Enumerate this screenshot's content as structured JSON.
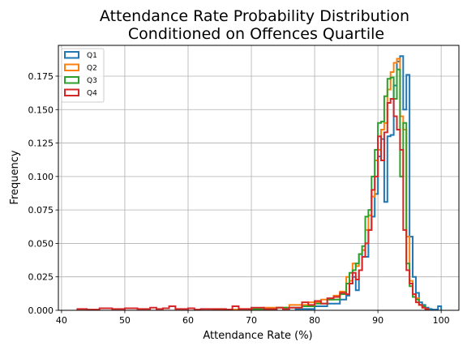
{
  "chart_data": {
    "type": "histogram",
    "title_lines": [
      "Attendance Rate Probability Distribution",
      "Conditioned on Offences Quartile"
    ],
    "xlabel": "Attendance Rate (%)",
    "ylabel": "Frequency",
    "xlim": [
      39.5,
      102.8
    ],
    "ylim": [
      0,
      0.198
    ],
    "xticks": [
      40,
      50,
      60,
      70,
      80,
      90,
      100
    ],
    "xtick_labels": [
      "40",
      "50",
      "60",
      "70",
      "80",
      "90",
      "100"
    ],
    "yticks": [
      0.0,
      0.025,
      0.05,
      0.075,
      0.1,
      0.125,
      0.15,
      0.175
    ],
    "ytick_labels": [
      "0.000",
      "0.025",
      "0.050",
      "0.075",
      "0.100",
      "0.125",
      "0.150",
      "0.175"
    ],
    "grid": true,
    "legend_position": "upper-left",
    "histtype": "step",
    "series": [
      {
        "name": "Q1",
        "color": "#1f77b4",
        "edges": [
          77,
          80,
          82,
          84,
          85,
          85.5,
          86,
          86.5,
          87,
          87.5,
          88,
          88.5,
          89,
          89.5,
          90,
          90.5,
          91,
          91.5,
          92,
          92.5,
          93,
          93.5,
          94,
          94.5,
          95,
          95.5,
          96,
          96.5,
          97,
          97.5,
          98,
          98.5,
          99,
          99.5,
          100
        ],
        "values": [
          0.001,
          0.003,
          0.005,
          0.008,
          0.011,
          0.02,
          0.025,
          0.015,
          0.03,
          0.045,
          0.04,
          0.06,
          0.07,
          0.087,
          0.115,
          0.128,
          0.081,
          0.13,
          0.131,
          0.168,
          0.186,
          0.19,
          0.15,
          0.176,
          0.055,
          0.025,
          0.013,
          0.006,
          0.004,
          0.002,
          0.001,
          0.0005,
          0.0005,
          0.003
        ]
      },
      {
        "name": "Q2",
        "color": "#ff7f0e",
        "edges": [
          64,
          68,
          72,
          76,
          79,
          81,
          83,
          84,
          85,
          85.5,
          86,
          86.5,
          87,
          87.5,
          88,
          88.5,
          89,
          89.5,
          90,
          90.5,
          91,
          91.5,
          92,
          92.5,
          93,
          93.5,
          94,
          94.5,
          95,
          95.5,
          96,
          96.5,
          97,
          97.5,
          98
        ],
        "values": [
          0.0005,
          0.001,
          0.002,
          0.004,
          0.006,
          0.008,
          0.011,
          0.014,
          0.025,
          0.022,
          0.035,
          0.033,
          0.042,
          0.045,
          0.06,
          0.071,
          0.085,
          0.112,
          0.12,
          0.135,
          0.14,
          0.165,
          0.178,
          0.185,
          0.188,
          0.145,
          0.135,
          0.055,
          0.022,
          0.012,
          0.009,
          0.004,
          0.002,
          0.001
        ]
      },
      {
        "name": "Q3",
        "color": "#2ca02c",
        "edges": [
          70,
          74,
          78,
          80,
          82,
          84,
          85,
          85.5,
          86,
          86.5,
          87,
          87.5,
          88,
          88.5,
          89,
          89.5,
          90,
          90.5,
          91,
          91.5,
          92,
          92.5,
          93,
          93.5,
          94,
          94.5,
          95,
          95.5,
          96,
          96.5,
          97,
          97.5,
          98
        ],
        "values": [
          0.001,
          0.002,
          0.003,
          0.005,
          0.008,
          0.012,
          0.02,
          0.028,
          0.03,
          0.035,
          0.042,
          0.048,
          0.07,
          0.075,
          0.1,
          0.12,
          0.14,
          0.141,
          0.16,
          0.173,
          0.174,
          0.158,
          0.18,
          0.1,
          0.14,
          0.035,
          0.018,
          0.01,
          0.008,
          0.004,
          0.003,
          0.001
        ]
      },
      {
        "name": "Q4",
        "color": "#d62728",
        "edges": [
          42.5,
          44,
          46,
          48,
          50,
          52,
          54,
          55,
          56,
          57,
          58,
          60,
          61,
          62,
          64,
          66,
          67,
          68,
          70,
          72,
          74,
          75,
          76,
          78,
          79,
          80,
          81,
          82,
          83,
          84,
          85,
          85.5,
          86,
          86.5,
          87,
          87.5,
          88,
          88.5,
          89,
          89.5,
          90,
          90.5,
          91,
          91.5,
          92,
          92.5,
          93,
          93.5,
          94,
          94.5,
          95,
          95.5,
          96,
          96.5,
          97,
          97.5,
          98
        ],
        "values": [
          0.001,
          0.0005,
          0.0015,
          0.001,
          0.0015,
          0.001,
          0.002,
          0.001,
          0.0015,
          0.003,
          0.001,
          0.0015,
          0.0005,
          0.001,
          0.001,
          0.0005,
          0.003,
          0.001,
          0.002,
          0.001,
          0.002,
          0.001,
          0.002,
          0.006,
          0.004,
          0.007,
          0.005,
          0.009,
          0.01,
          0.013,
          0.012,
          0.02,
          0.028,
          0.023,
          0.03,
          0.04,
          0.05,
          0.06,
          0.09,
          0.1,
          0.13,
          0.112,
          0.133,
          0.155,
          0.158,
          0.145,
          0.135,
          0.12,
          0.06,
          0.03,
          0.02,
          0.012,
          0.006,
          0.004,
          0.002,
          0.001
        ]
      }
    ]
  }
}
